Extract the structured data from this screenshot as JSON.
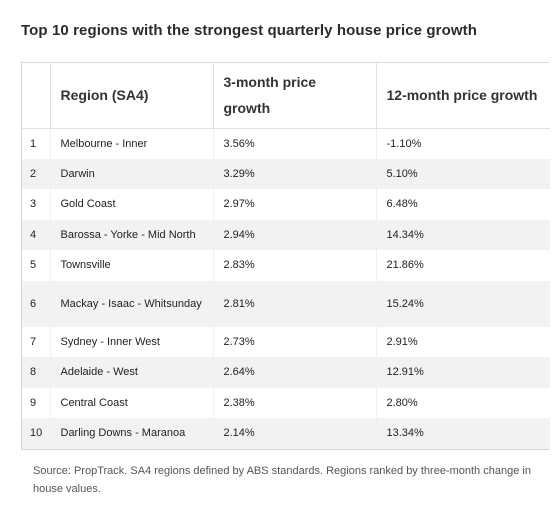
{
  "title": "Top 10 regions with the strongest quarterly house price growth",
  "table": {
    "headers": [
      "",
      "Region (SA4)",
      "3-month price growth",
      "12-month price growth"
    ],
    "rows": [
      {
        "rank": "1",
        "region": "Melbourne - Inner",
        "three_month": "3.56%",
        "twelve_month": "-1.10%"
      },
      {
        "rank": "2",
        "region": "Darwin",
        "three_month": "3.29%",
        "twelve_month": "5.10%"
      },
      {
        "rank": "3",
        "region": "Gold Coast",
        "three_month": "2.97%",
        "twelve_month": "6.48%"
      },
      {
        "rank": "4",
        "region": "Barossa - Yorke - Mid North",
        "three_month": "2.94%",
        "twelve_month": "14.34%"
      },
      {
        "rank": "5",
        "region": "Townsville",
        "three_month": "2.83%",
        "twelve_month": "21.86%"
      },
      {
        "rank": "6",
        "region": "Mackay - Isaac - Whitsunday",
        "three_month": "2.81%",
        "twelve_month": "15.24%"
      },
      {
        "rank": "7",
        "region": "Sydney - Inner West",
        "three_month": "2.73%",
        "twelve_month": "2.91%"
      },
      {
        "rank": "8",
        "region": "Adelaide - West",
        "three_month": "2.64%",
        "twelve_month": "12.91%"
      },
      {
        "rank": "9",
        "region": "Central Coast",
        "three_month": "2.38%",
        "twelve_month": "2.80%"
      },
      {
        "rank": "10",
        "region": "Darling Downs - Maranoa",
        "three_month": "2.14%",
        "twelve_month": "13.34%"
      }
    ]
  },
  "source": "Source: PropTrack. SA4 regions defined by ABS standards. Regions ranked by three-month change in house values."
}
